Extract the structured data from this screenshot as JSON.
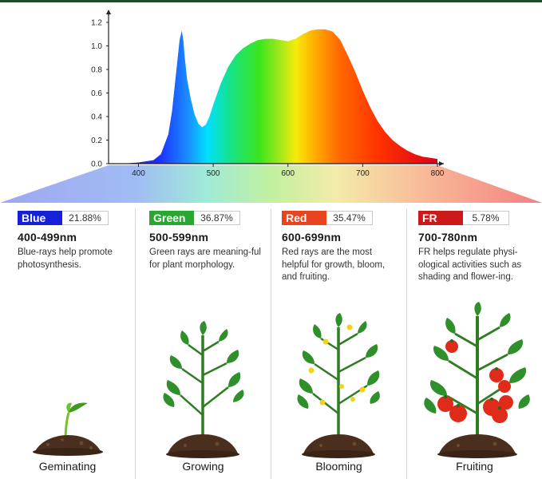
{
  "chart_data": {
    "type": "area",
    "title": "",
    "xlabel": "",
    "ylabel": "",
    "xlim": [
      360,
      800
    ],
    "ylim": [
      0,
      1.2
    ],
    "x_ticks": [
      "400",
      "500",
      "600",
      "700",
      "800"
    ],
    "y_ticks": [
      "0.0",
      "0.2",
      "0.4",
      "0.6",
      "0.8",
      "1.0",
      "1.2"
    ],
    "series": [
      {
        "x": [
          380,
          400,
          420,
          430,
          440,
          445,
          450,
          455,
          458,
          460,
          462,
          465,
          470,
          475,
          480,
          485,
          490,
          495,
          500,
          510,
          520,
          530,
          540,
          550,
          560,
          570,
          580,
          590,
          600,
          610,
          620,
          630,
          640,
          650,
          660,
          670,
          680,
          690,
          700,
          710,
          720,
          730,
          740,
          750,
          760,
          770,
          780,
          790,
          800
        ],
        "y": [
          0.0,
          0.01,
          0.03,
          0.08,
          0.25,
          0.45,
          0.75,
          1.05,
          1.13,
          1.05,
          0.9,
          0.72,
          0.55,
          0.42,
          0.34,
          0.31,
          0.33,
          0.4,
          0.5,
          0.68,
          0.82,
          0.92,
          0.98,
          1.02,
          1.05,
          1.06,
          1.06,
          1.05,
          1.04,
          1.06,
          1.1,
          1.13,
          1.14,
          1.14,
          1.12,
          1.05,
          0.92,
          0.78,
          0.62,
          0.48,
          0.36,
          0.27,
          0.2,
          0.15,
          0.11,
          0.08,
          0.06,
          0.05,
          0.04
        ]
      }
    ],
    "grid": false
  },
  "bands": [
    {
      "name": "Blue",
      "color": "#1520d8",
      "percent": "21.88%",
      "range": "400-499nm",
      "description": "Blue-rays help promote photosynthesis."
    },
    {
      "name": "Green",
      "color": "#2aa632",
      "percent": "36.87%",
      "range": "500-599nm",
      "description": "Green rays are meaning-ful for plant morphology."
    },
    {
      "name": "Red",
      "color": "#e8441f",
      "percent": "35.47%",
      "range": "600-699nm",
      "description": "Red rays are the most helpful for growth, bloom, and fruiting."
    },
    {
      "name": "FR",
      "color": "#cc1a1a",
      "percent": "5.78%",
      "range": "700-780nm",
      "description": "FR helps regulate physi-ological activities such as shading and flower-ing."
    }
  ],
  "stages": [
    "Geminating",
    "Growing",
    "Blooming",
    "Fruiting"
  ],
  "colors": {
    "soil": "#4a2f1e",
    "leaf": "#2f8f2a",
    "leaf_dark": "#1f6b1c",
    "flower": "#f3d21a",
    "tomato": "#e02a1a",
    "axis": "#222222"
  }
}
